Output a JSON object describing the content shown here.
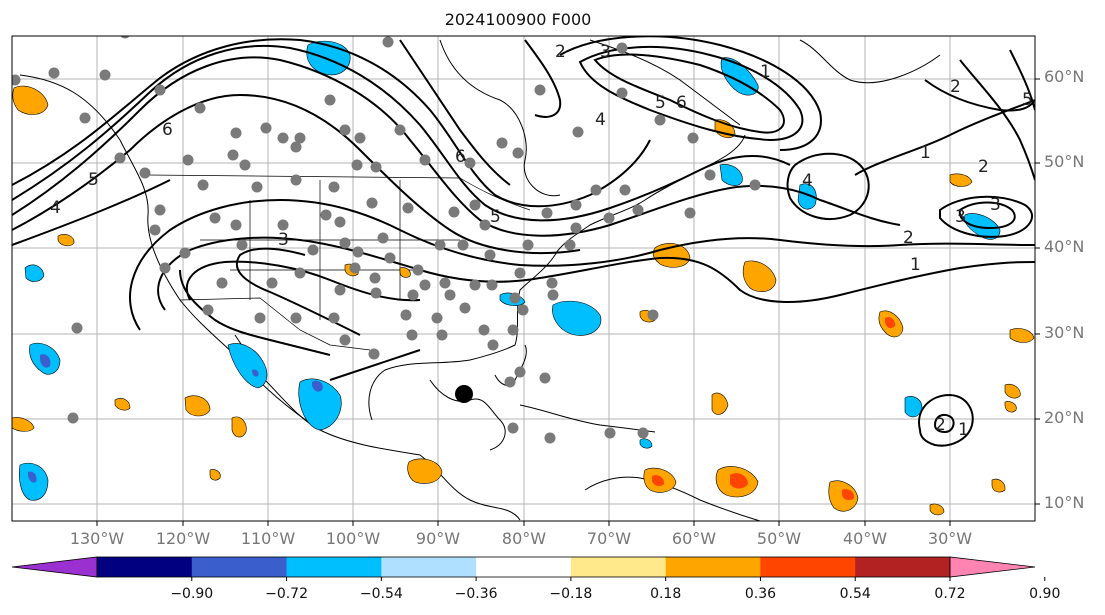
{
  "title": "2024100900 F000",
  "map": {
    "lat_labels": [
      "60°N",
      "50°N",
      "40°N",
      "30°N",
      "20°N",
      "10°N"
    ],
    "lon_labels": [
      "130°W",
      "120°W",
      "110°W",
      "100°W",
      "90°W",
      "80°W",
      "70°W",
      "60°W",
      "50°W",
      "40°W",
      "30°W"
    ],
    "contour_labels": [
      "6",
      "5",
      "4",
      "3",
      "2",
      "1",
      "6",
      "5",
      "4",
      "3",
      "2",
      "1",
      "4",
      "3",
      "2",
      "1",
      "6",
      "5",
      "1",
      "3",
      "2",
      "5",
      "2"
    ],
    "storm_marker": "black-dot",
    "station_color": "#7a7a7a"
  },
  "colorbar": {
    "colors": [
      "#9b30d0",
      "#000080",
      "#3a5fcd",
      "#00bfff",
      "#b0e0ff",
      "#ffffff",
      "#ffe98a",
      "#ffa500",
      "#ff4500",
      "#b22222",
      "#ff85b0"
    ],
    "tick_labels": [
      "−0.90",
      "−0.72",
      "−0.54",
      "−0.36",
      "−0.18",
      "0.18",
      "0.36",
      "0.54",
      "0.72",
      "0.90"
    ]
  }
}
